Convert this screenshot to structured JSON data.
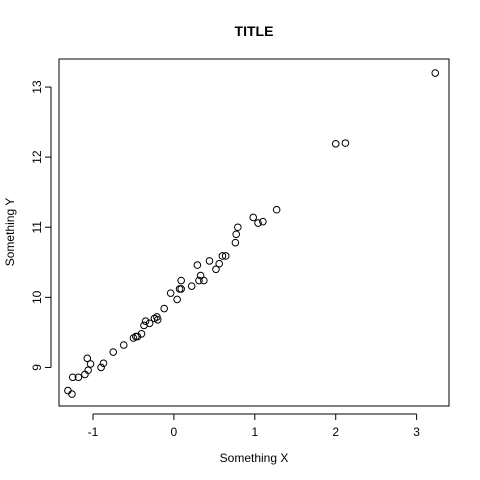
{
  "chart_data": {
    "type": "scatter",
    "title": "TITLE",
    "xlabel": "Something X",
    "ylabel": "Something Y",
    "xlim": [
      -1.42,
      3.4
    ],
    "ylim": [
      8.45,
      13.4
    ],
    "grid": false,
    "legend": "none",
    "marker": "open-circle",
    "colors": {
      "stroke": "#000000",
      "background": "#ffffff"
    },
    "x_ticks": [
      {
        "value": -1,
        "label": "-1"
      },
      {
        "value": 0,
        "label": "0"
      },
      {
        "value": 1,
        "label": "1"
      },
      {
        "value": 2,
        "label": "2"
      },
      {
        "value": 3,
        "label": "3"
      }
    ],
    "y_ticks": [
      {
        "value": 9,
        "label": "9"
      },
      {
        "value": 10,
        "label": "10"
      },
      {
        "value": 11,
        "label": "11"
      },
      {
        "value": 12,
        "label": "12"
      },
      {
        "value": 13,
        "label": "13"
      }
    ],
    "points": [
      {
        "x": -1.31,
        "y": 8.67
      },
      {
        "x": -1.26,
        "y": 8.62
      },
      {
        "x": -1.25,
        "y": 8.86
      },
      {
        "x": -1.18,
        "y": 8.86
      },
      {
        "x": -1.1,
        "y": 8.9
      },
      {
        "x": -1.06,
        "y": 8.96
      },
      {
        "x": -1.03,
        "y": 9.05
      },
      {
        "x": -1.07,
        "y": 9.13
      },
      {
        "x": -0.9,
        "y": 9.0
      },
      {
        "x": -0.87,
        "y": 9.06
      },
      {
        "x": -0.75,
        "y": 9.22
      },
      {
        "x": -0.62,
        "y": 9.32
      },
      {
        "x": -0.5,
        "y": 9.42
      },
      {
        "x": -0.47,
        "y": 9.44
      },
      {
        "x": -0.45,
        "y": 9.44
      },
      {
        "x": -0.4,
        "y": 9.48
      },
      {
        "x": -0.37,
        "y": 9.6
      },
      {
        "x": -0.35,
        "y": 9.66
      },
      {
        "x": -0.3,
        "y": 9.63
      },
      {
        "x": -0.24,
        "y": 9.7
      },
      {
        "x": -0.21,
        "y": 9.72
      },
      {
        "x": -0.2,
        "y": 9.68
      },
      {
        "x": -0.12,
        "y": 9.84
      },
      {
        "x": -0.04,
        "y": 10.06
      },
      {
        "x": 0.04,
        "y": 9.97
      },
      {
        "x": 0.07,
        "y": 10.12
      },
      {
        "x": 0.09,
        "y": 10.12
      },
      {
        "x": 0.09,
        "y": 10.24
      },
      {
        "x": 0.22,
        "y": 10.16
      },
      {
        "x": 0.29,
        "y": 10.46
      },
      {
        "x": 0.31,
        "y": 10.24
      },
      {
        "x": 0.33,
        "y": 10.31
      },
      {
        "x": 0.37,
        "y": 10.24
      },
      {
        "x": 0.44,
        "y": 10.52
      },
      {
        "x": 0.52,
        "y": 10.4
      },
      {
        "x": 0.56,
        "y": 10.48
      },
      {
        "x": 0.6,
        "y": 10.59
      },
      {
        "x": 0.64,
        "y": 10.59
      },
      {
        "x": 0.76,
        "y": 10.78
      },
      {
        "x": 0.77,
        "y": 10.9
      },
      {
        "x": 0.79,
        "y": 11.0
      },
      {
        "x": 0.98,
        "y": 11.14
      },
      {
        "x": 1.04,
        "y": 11.06
      },
      {
        "x": 1.1,
        "y": 11.08
      },
      {
        "x": 1.27,
        "y": 11.25
      },
      {
        "x": 2.0,
        "y": 12.19
      },
      {
        "x": 2.12,
        "y": 12.2
      },
      {
        "x": 3.23,
        "y": 13.2
      }
    ]
  }
}
